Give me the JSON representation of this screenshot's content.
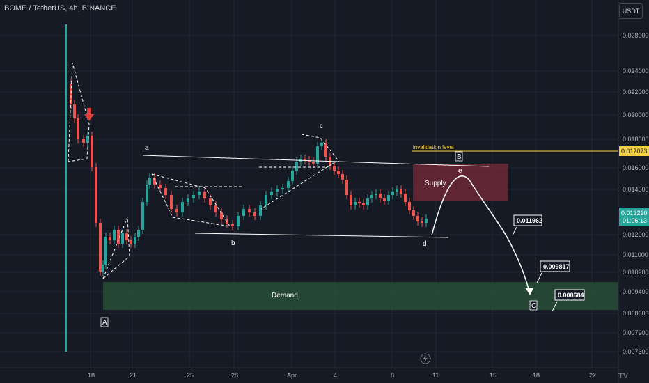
{
  "header": {
    "title": "BOME / TetherUS, 4h, BINANCE",
    "currency_button": "USDT"
  },
  "colors": {
    "up": "#26a69a",
    "down": "#ef5350",
    "bg": "#161a25",
    "supply": "#8b2f3d",
    "demand": "#2a5a3a",
    "invalidation": "#f5d142"
  },
  "chart_data": {
    "type": "candlestick",
    "symbol": "BOME / TetherUS",
    "timeframe": "4h",
    "exchange": "BINANCE",
    "y_ticks": [
      "0.028000",
      "0.024000",
      "0.022000",
      "0.020000",
      "0.018000",
      "0.016000",
      "0.014500",
      "0.012000",
      "0.011000",
      "0.010200",
      "0.009400",
      "0.008600",
      "0.007900",
      "0.007300"
    ],
    "x_ticks": [
      "18",
      "21",
      "25",
      "28",
      "Apr",
      "4",
      "8",
      "11",
      "15",
      "18",
      "22"
    ],
    "current_price": "0.013220",
    "countdown": "01:06:13",
    "invalidation_price": "0.017073",
    "invalidation_label": "invalidation level",
    "zones": {
      "supply": "Supply",
      "demand": "Demand"
    },
    "wave_labels": [
      "A",
      "a",
      "b",
      "c",
      "d",
      "e",
      "B",
      "C"
    ],
    "targets": [
      "0.011962",
      "0.009817",
      "0.008684"
    ]
  }
}
